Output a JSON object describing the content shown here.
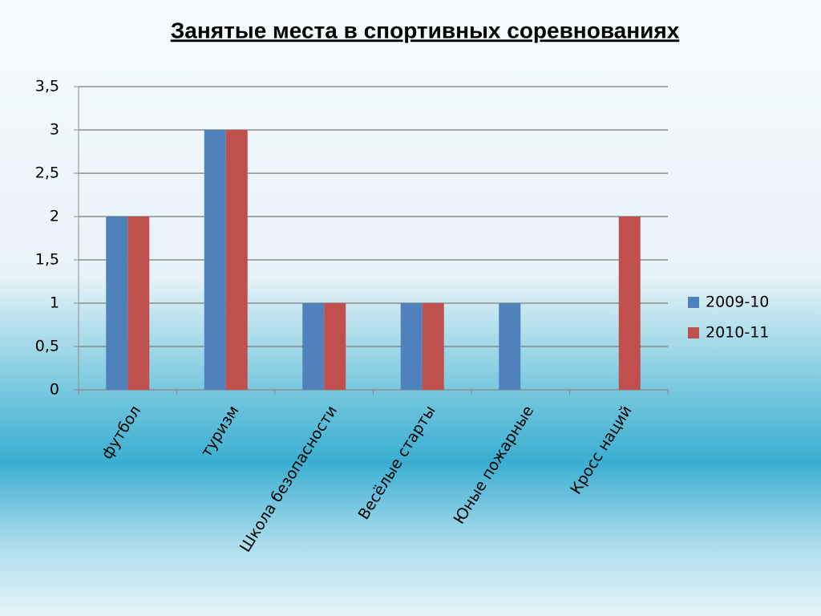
{
  "chart_data": {
    "type": "bar",
    "title": "Занятые места в спортивных соревнованиях",
    "categories": [
      "футбол",
      "туризм",
      "Школа безопасности",
      "Весёлые старты",
      "Юные пожарные",
      "Кросс наций"
    ],
    "series": [
      {
        "name": "2009-10",
        "color": "#4f81bd",
        "values": [
          2,
          3,
          1,
          1,
          1,
          null
        ]
      },
      {
        "name": "2010-11",
        "color": "#c0504d",
        "values": [
          2,
          3,
          1,
          1,
          null,
          2
        ]
      }
    ],
    "ylim": [
      0,
      3.5
    ],
    "yticks": [
      0,
      {
        "value": 0.5,
        "label": "0,5"
      },
      1,
      {
        "value": 1.5,
        "label": "1,5"
      },
      2,
      {
        "value": 2.5,
        "label": "2,5"
      },
      3,
      {
        "value": 3.5,
        "label": "3,5"
      }
    ],
    "grid": true,
    "legend": "right"
  }
}
